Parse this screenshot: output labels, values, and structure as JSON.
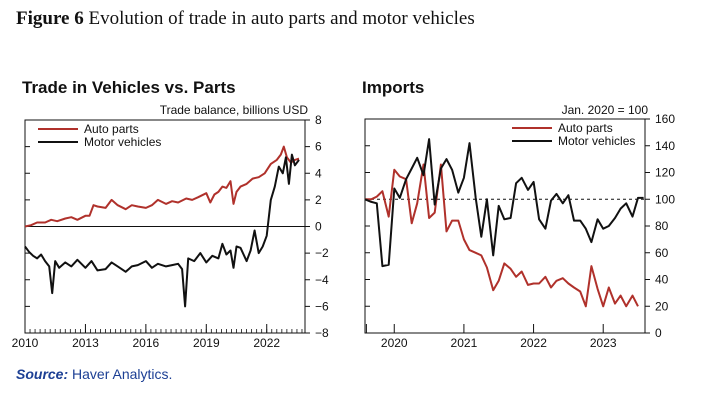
{
  "figure": {
    "label": "Figure 6",
    "title": "Evolution of trade in auto parts and motor vehicles"
  },
  "source": {
    "label": "Source:",
    "text": "Haver Analytics."
  },
  "colors": {
    "auto_parts": "#b0312b",
    "motor_vehicles": "#111111"
  },
  "chart_data": [
    {
      "type": "line",
      "title": "Trade in Vehicles vs. Parts",
      "ylabel": "Trade balance, billions USD",
      "xlim": [
        2010,
        2023.9
      ],
      "ylim": [
        -8,
        8
      ],
      "x_ticks": [
        2010,
        2013,
        2016,
        2019,
        2022
      ],
      "x_tick_labels": [
        "2010",
        "2013",
        "2016",
        "2019",
        "2022"
      ],
      "y_ticks": [
        -8,
        -6,
        -4,
        -2,
        0,
        2,
        4,
        6,
        8
      ],
      "y_tick_labels": [
        "−8",
        "−6",
        "−4",
        "−2",
        "0",
        "2",
        "4",
        "6",
        "8"
      ],
      "y_axis_side": "right",
      "reference_line": 0,
      "legend_position": "top-left",
      "series": [
        {
          "name": "Auto parts",
          "color": "#b0312b",
          "points": [
            [
              2010.0,
              0.0
            ],
            [
              2010.3,
              0.1
            ],
            [
              2010.6,
              0.3
            ],
            [
              2011.0,
              0.3
            ],
            [
              2011.3,
              0.5
            ],
            [
              2011.6,
              0.4
            ],
            [
              2012.0,
              0.6
            ],
            [
              2012.3,
              0.7
            ],
            [
              2012.6,
              0.5
            ],
            [
              2013.0,
              0.8
            ],
            [
              2013.2,
              0.8
            ],
            [
              2013.4,
              1.6
            ],
            [
              2013.6,
              1.5
            ],
            [
              2014.0,
              1.4
            ],
            [
              2014.3,
              2.0
            ],
            [
              2014.6,
              1.6
            ],
            [
              2015.0,
              1.3
            ],
            [
              2015.3,
              1.6
            ],
            [
              2015.6,
              1.5
            ],
            [
              2016.0,
              1.4
            ],
            [
              2016.3,
              1.6
            ],
            [
              2016.6,
              2.0
            ],
            [
              2017.0,
              1.7
            ],
            [
              2017.3,
              1.9
            ],
            [
              2017.6,
              1.8
            ],
            [
              2018.0,
              2.1
            ],
            [
              2018.3,
              2.0
            ],
            [
              2018.6,
              2.2
            ],
            [
              2019.0,
              2.5
            ],
            [
              2019.2,
              1.8
            ],
            [
              2019.4,
              2.4
            ],
            [
              2019.6,
              2.6
            ],
            [
              2019.8,
              3.0
            ],
            [
              2020.0,
              2.9
            ],
            [
              2020.2,
              3.4
            ],
            [
              2020.35,
              1.7
            ],
            [
              2020.5,
              2.6
            ],
            [
              2020.7,
              3.0
            ],
            [
              2021.0,
              3.2
            ],
            [
              2021.3,
              3.6
            ],
            [
              2021.6,
              3.7
            ],
            [
              2021.9,
              4.0
            ],
            [
              2022.2,
              4.7
            ],
            [
              2022.5,
              5.0
            ],
            [
              2022.7,
              5.4
            ],
            [
              2022.85,
              6.0
            ],
            [
              2023.0,
              5.2
            ],
            [
              2023.2,
              4.8
            ],
            [
              2023.4,
              5.0
            ],
            [
              2023.6,
              5.1
            ]
          ]
        },
        {
          "name": "Motor vehicles",
          "color": "#111111",
          "points": [
            [
              2010.0,
              -1.5
            ],
            [
              2010.2,
              -1.9
            ],
            [
              2010.4,
              -2.2
            ],
            [
              2010.6,
              -2.4
            ],
            [
              2010.8,
              -2.1
            ],
            [
              2011.0,
              -2.6
            ],
            [
              2011.2,
              -3.0
            ],
            [
              2011.35,
              -5.0
            ],
            [
              2011.5,
              -2.6
            ],
            [
              2011.7,
              -3.1
            ],
            [
              2012.0,
              -2.7
            ],
            [
              2012.3,
              -3.0
            ],
            [
              2012.6,
              -2.5
            ],
            [
              2013.0,
              -3.1
            ],
            [
              2013.3,
              -2.6
            ],
            [
              2013.6,
              -3.3
            ],
            [
              2014.0,
              -3.2
            ],
            [
              2014.3,
              -2.7
            ],
            [
              2014.6,
              -3.0
            ],
            [
              2015.0,
              -3.4
            ],
            [
              2015.3,
              -3.0
            ],
            [
              2015.6,
              -2.9
            ],
            [
              2016.0,
              -2.6
            ],
            [
              2016.3,
              -3.1
            ],
            [
              2016.6,
              -2.8
            ],
            [
              2017.0,
              -3.0
            ],
            [
              2017.3,
              -2.9
            ],
            [
              2017.6,
              -2.8
            ],
            [
              2017.8,
              -3.2
            ],
            [
              2017.95,
              -6.0
            ],
            [
              2018.1,
              -2.4
            ],
            [
              2018.4,
              -2.6
            ],
            [
              2018.7,
              -2.0
            ],
            [
              2019.0,
              -2.7
            ],
            [
              2019.3,
              -2.2
            ],
            [
              2019.6,
              -2.4
            ],
            [
              2019.8,
              -1.3
            ],
            [
              2020.0,
              -2.1
            ],
            [
              2020.2,
              -1.8
            ],
            [
              2020.35,
              -3.1
            ],
            [
              2020.5,
              -1.5
            ],
            [
              2020.7,
              -1.6
            ],
            [
              2021.0,
              -2.6
            ],
            [
              2021.2,
              -1.8
            ],
            [
              2021.4,
              -0.3
            ],
            [
              2021.6,
              -2.0
            ],
            [
              2021.8,
              -1.5
            ],
            [
              2022.0,
              -0.7
            ],
            [
              2022.2,
              2.0
            ],
            [
              2022.4,
              3.0
            ],
            [
              2022.6,
              4.5
            ],
            [
              2022.8,
              4.0
            ],
            [
              2022.95,
              5.2
            ],
            [
              2023.1,
              3.2
            ],
            [
              2023.25,
              5.4
            ],
            [
              2023.4,
              4.6
            ],
            [
              2023.6,
              5.0
            ]
          ]
        }
      ]
    },
    {
      "type": "line",
      "title": "Imports",
      "ylabel": "Jan. 2020 = 100",
      "xlim": [
        2019.58,
        2023.6
      ],
      "ylim": [
        0,
        160
      ],
      "x_ticks": [
        2020,
        2021,
        2022,
        2023
      ],
      "x_tick_labels": [
        "2020",
        "2021",
        "2022",
        "2023"
      ],
      "y_ticks": [
        0,
        20,
        40,
        60,
        80,
        100,
        120,
        140,
        160
      ],
      "y_tick_labels": [
        "0",
        "20",
        "40",
        "60",
        "80",
        "100",
        "120",
        "140",
        "160"
      ],
      "y_axis_side": "right",
      "reference_line": 100,
      "legend_position": "top-right",
      "series": [
        {
          "name": "Auto parts",
          "color": "#b0312b",
          "points": [
            [
              2019.58,
              100
            ],
            [
              2019.67,
              100
            ],
            [
              2019.75,
              102
            ],
            [
              2019.83,
              106
            ],
            [
              2019.92,
              87
            ],
            [
              2020.0,
              122
            ],
            [
              2020.08,
              117
            ],
            [
              2020.17,
              115
            ],
            [
              2020.25,
              82
            ],
            [
              2020.33,
              97
            ],
            [
              2020.42,
              126
            ],
            [
              2020.5,
              86
            ],
            [
              2020.58,
              90
            ],
            [
              2020.67,
              126
            ],
            [
              2020.75,
              76
            ],
            [
              2020.83,
              84
            ],
            [
              2020.92,
              84
            ],
            [
              2021.0,
              70
            ],
            [
              2021.08,
              62
            ],
            [
              2021.17,
              60
            ],
            [
              2021.25,
              58
            ],
            [
              2021.33,
              49
            ],
            [
              2021.42,
              32
            ],
            [
              2021.5,
              39
            ],
            [
              2021.58,
              52
            ],
            [
              2021.67,
              48
            ],
            [
              2021.75,
              42
            ],
            [
              2021.83,
              46
            ],
            [
              2021.92,
              36
            ],
            [
              2022.0,
              37
            ],
            [
              2022.08,
              37
            ],
            [
              2022.17,
              42
            ],
            [
              2022.25,
              34
            ],
            [
              2022.33,
              39
            ],
            [
              2022.42,
              41
            ],
            [
              2022.5,
              37
            ],
            [
              2022.58,
              34
            ],
            [
              2022.67,
              31
            ],
            [
              2022.75,
              20
            ],
            [
              2022.83,
              50
            ],
            [
              2022.92,
              33
            ],
            [
              2023.0,
              20
            ],
            [
              2023.08,
              34
            ],
            [
              2023.17,
              22
            ],
            [
              2023.25,
              28
            ],
            [
              2023.33,
              20
            ],
            [
              2023.42,
              28
            ],
            [
              2023.5,
              20
            ]
          ]
        },
        {
          "name": "Motor vehicles",
          "color": "#111111",
          "points": [
            [
              2019.58,
              100
            ],
            [
              2019.67,
              98
            ],
            [
              2019.75,
              97
            ],
            [
              2019.83,
              50
            ],
            [
              2019.92,
              51
            ],
            [
              2020.0,
              108
            ],
            [
              2020.08,
              101
            ],
            [
              2020.17,
              115
            ],
            [
              2020.25,
              123
            ],
            [
              2020.33,
              131
            ],
            [
              2020.42,
              118
            ],
            [
              2020.5,
              145
            ],
            [
              2020.58,
              96
            ],
            [
              2020.67,
              123
            ],
            [
              2020.75,
              130
            ],
            [
              2020.83,
              122
            ],
            [
              2020.92,
              105
            ],
            [
              2021.0,
              116
            ],
            [
              2021.08,
              142
            ],
            [
              2021.17,
              101
            ],
            [
              2021.25,
              72
            ],
            [
              2021.33,
              100
            ],
            [
              2021.42,
              58
            ],
            [
              2021.5,
              95
            ],
            [
              2021.58,
              85
            ],
            [
              2021.67,
              86
            ],
            [
              2021.75,
              112
            ],
            [
              2021.83,
              116
            ],
            [
              2021.92,
              107
            ],
            [
              2022.0,
              113
            ],
            [
              2022.08,
              85
            ],
            [
              2022.17,
              78
            ],
            [
              2022.25,
              99
            ],
            [
              2022.33,
              104
            ],
            [
              2022.42,
              97
            ],
            [
              2022.5,
              103
            ],
            [
              2022.58,
              84
            ],
            [
              2022.67,
              84
            ],
            [
              2022.75,
              78
            ],
            [
              2022.83,
              68
            ],
            [
              2022.92,
              85
            ],
            [
              2023.0,
              78
            ],
            [
              2023.08,
              80
            ],
            [
              2023.17,
              86
            ],
            [
              2023.25,
              93
            ],
            [
              2023.33,
              97
            ],
            [
              2023.42,
              87
            ],
            [
              2023.5,
              101
            ],
            [
              2023.58,
              101
            ]
          ]
        }
      ]
    }
  ]
}
